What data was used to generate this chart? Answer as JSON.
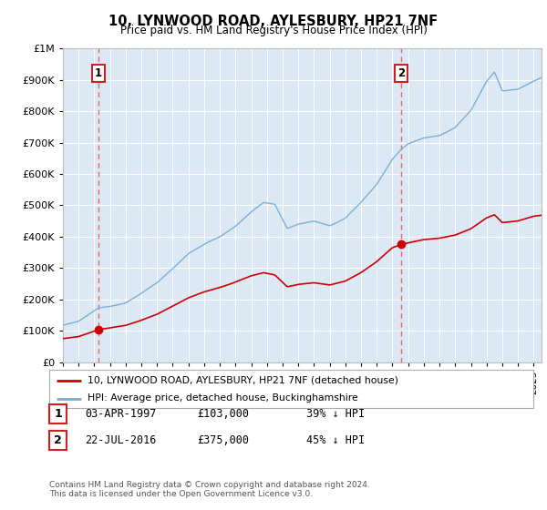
{
  "title": "10, LYNWOOD ROAD, AYLESBURY, HP21 7NF",
  "subtitle": "Price paid vs. HM Land Registry's House Price Index (HPI)",
  "legend_line1": "10, LYNWOOD ROAD, AYLESBURY, HP21 7NF (detached house)",
  "legend_line2": "HPI: Average price, detached house, Buckinghamshire",
  "footnote": "Contains HM Land Registry data © Crown copyright and database right 2024.\nThis data is licensed under the Open Government Licence v3.0.",
  "sales": [
    {
      "id": 1,
      "date_label": "03-APR-1997",
      "date_year": 1997.25,
      "price": 103000,
      "pct": "39% ↓ HPI"
    },
    {
      "id": 2,
      "date_label": "22-JUL-2016",
      "date_year": 2016.55,
      "price": 375000,
      "pct": "45% ↓ HPI"
    }
  ],
  "hpi_color": "#7aafd4",
  "property_color": "#cc0000",
  "vline_color": "#ee5555",
  "plot_bg": "#dde8f5",
  "ylim": [
    0,
    1000000
  ],
  "xlim_start": 1995.0,
  "xlim_end": 2025.5,
  "sale1_hpi_at_date": 169000,
  "sale2_hpi_at_date": 682000
}
